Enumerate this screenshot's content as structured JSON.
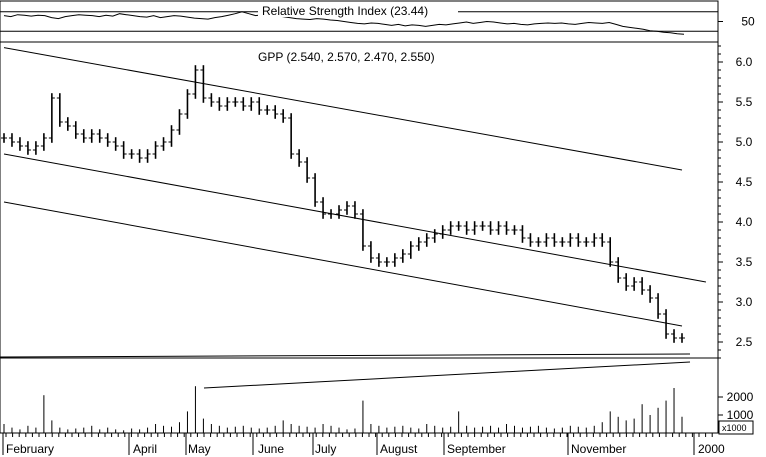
{
  "chart_data": [
    {
      "type": "line",
      "title": "Relative Strength Index (23.44)",
      "yticks": [
        50
      ],
      "ylim": [
        10,
        90
      ],
      "reference_levels": [
        70,
        30
      ],
      "values": [
        62,
        60,
        64,
        63,
        61,
        63,
        62,
        58,
        56,
        60,
        62,
        64,
        63,
        62,
        60,
        63,
        61,
        66,
        64,
        62,
        60,
        59,
        62,
        58,
        60,
        62,
        61,
        59,
        57,
        56,
        55,
        58,
        60,
        63,
        66,
        70,
        66,
        62,
        64,
        62,
        63,
        60,
        58,
        56,
        55,
        54,
        56,
        55,
        53,
        52,
        50,
        48,
        46,
        45,
        47,
        46,
        44,
        42,
        44,
        41,
        43,
        42,
        40,
        42,
        44,
        43,
        45,
        47,
        49,
        46,
        48,
        50,
        49,
        47,
        45,
        46,
        44,
        43,
        45,
        46,
        47,
        46,
        47,
        45,
        44,
        46,
        48,
        47,
        46,
        48,
        44,
        40,
        38,
        36,
        34,
        31,
        30,
        28,
        27,
        25,
        24
      ]
    },
    {
      "type": "ohlc",
      "title": "GPP (2.540, 2.570, 2.470, 2.550)",
      "x_labels": [
        "February",
        "April",
        "May",
        "June",
        "July",
        "August",
        "September",
        "November",
        "2000"
      ],
      "yticks": [
        6.0,
        5.5,
        5.0,
        4.5,
        4.0,
        3.5,
        3.0,
        2.5
      ],
      "ylim": [
        2.3,
        6.25
      ],
      "close": [
        5.05,
        5.0,
        4.95,
        4.9,
        4.95,
        5.05,
        5.55,
        5.25,
        5.2,
        5.1,
        5.05,
        5.1,
        5.05,
        5.0,
        4.95,
        4.85,
        4.85,
        4.8,
        4.85,
        4.95,
        5.0,
        5.15,
        5.35,
        5.6,
        5.9,
        5.55,
        5.5,
        5.45,
        5.5,
        5.5,
        5.45,
        5.5,
        5.4,
        5.4,
        5.35,
        5.3,
        4.85,
        4.75,
        4.55,
        4.25,
        4.1,
        4.1,
        4.15,
        4.2,
        4.1,
        3.7,
        3.55,
        3.5,
        3.5,
        3.55,
        3.6,
        3.7,
        3.75,
        3.8,
        3.85,
        3.9,
        3.95,
        3.95,
        3.9,
        3.95,
        3.95,
        3.9,
        3.95,
        3.9,
        3.9,
        3.8,
        3.75,
        3.75,
        3.8,
        3.75,
        3.75,
        3.8,
        3.75,
        3.75,
        3.8,
        3.75,
        3.5,
        3.3,
        3.2,
        3.25,
        3.15,
        3.05,
        2.85,
        2.6,
        2.55,
        2.55
      ],
      "trend_lines": [
        {
          "from": [
            0,
            6.18
          ],
          "to": [
            85,
            4.65
          ]
        },
        {
          "from": [
            0,
            4.85
          ],
          "to": [
            88,
            3.25
          ]
        },
        {
          "from": [
            0,
            4.25
          ],
          "to": [
            85,
            2.7
          ]
        }
      ]
    },
    {
      "type": "bar",
      "title": "",
      "unit_label": "x1000",
      "yticks": [
        2000,
        1000
      ],
      "ylim": [
        0,
        3500
      ],
      "values": [
        500,
        300,
        200,
        400,
        300,
        2100,
        700,
        300,
        200,
        250,
        300,
        400,
        200,
        300,
        200,
        150,
        250,
        200,
        300,
        500,
        400,
        350,
        600,
        1200,
        2600,
        800,
        500,
        400,
        300,
        350,
        400,
        300,
        250,
        300,
        400,
        700,
        500,
        400,
        350,
        300,
        500,
        400,
        300,
        200,
        250,
        1800,
        500,
        400,
        300,
        350,
        400,
        300,
        250,
        500,
        400,
        300,
        350,
        1200,
        400,
        300,
        350,
        400,
        300,
        500,
        400,
        300,
        350,
        400,
        300,
        250,
        300,
        400,
        350,
        300,
        400,
        600,
        1200,
        900,
        700,
        800,
        1600,
        1000,
        1400,
        1800,
        2500,
        900
      ]
    }
  ]
}
